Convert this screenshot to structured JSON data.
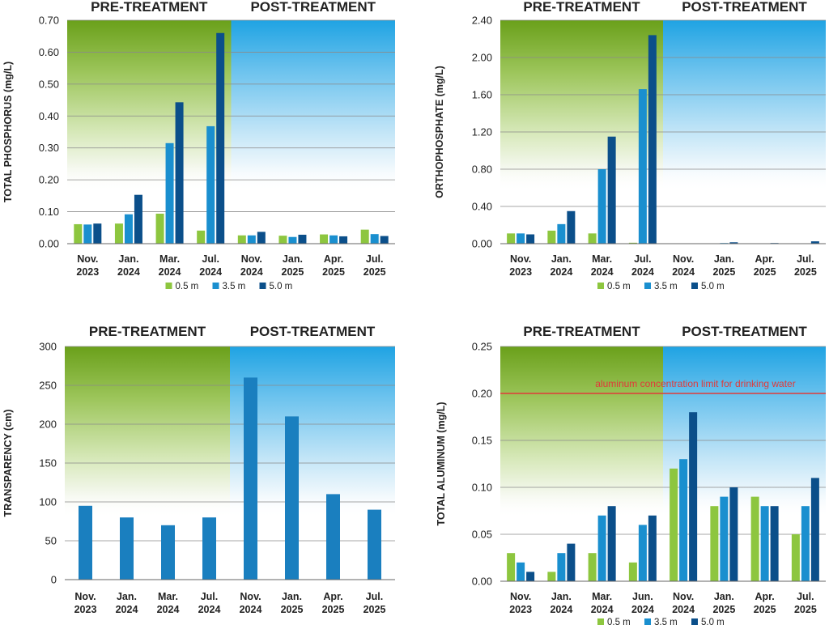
{
  "chart_data": [
    {
      "type": "bar",
      "phase_labels": [
        "PRE-TREATMENT",
        "POST-TREATMENT"
      ],
      "ylabel": "TOTAL PHOSPHORUS  (mg/L)",
      "categories": [
        [
          "Nov.",
          "2023"
        ],
        [
          "Jan.",
          "2024"
        ],
        [
          "Mar.",
          "2024"
        ],
        [
          "Jul.",
          "2024"
        ],
        [
          "Nov.",
          "2024"
        ],
        [
          "Jan.",
          "2025"
        ],
        [
          "Apr.",
          "2025"
        ],
        [
          "Jul.",
          "2025"
        ]
      ],
      "ylim": [
        0,
        0.7
      ],
      "yticks": [
        "0.00",
        "0.10",
        "0.20",
        "0.30",
        "0.40",
        "0.50",
        "0.60",
        "0.70"
      ],
      "pre_count": 4,
      "series": [
        {
          "name": "0.5 m",
          "color": "#8dc63f",
          "values": [
            0.061,
            0.063,
            0.094,
            0.041,
            0.026,
            0.025,
            0.029,
            0.044
          ]
        },
        {
          "name": "3.5 m",
          "color": "#1a8fcf",
          "values": [
            0.06,
            0.092,
            0.315,
            0.368,
            0.026,
            0.021,
            0.026,
            0.03
          ]
        },
        {
          "name": "5.0 m",
          "color": "#0b4f8a",
          "values": [
            0.063,
            0.153,
            0.443,
            0.66,
            0.037,
            0.028,
            0.023,
            0.024
          ]
        }
      ],
      "legend": "bottom",
      "grid": true
    },
    {
      "type": "bar",
      "phase_labels": [
        "PRE-TREATMENT",
        "POST-TREATMENT"
      ],
      "ylabel": "ORTHOPHOSPHATE (mg/L)",
      "categories": [
        [
          "Nov.",
          "2023"
        ],
        [
          "Jan.",
          "2024"
        ],
        [
          "Mar.",
          "2024"
        ],
        [
          "Jul.",
          "2024"
        ],
        [
          "Nov.",
          "2024"
        ],
        [
          "Jan.",
          "2025"
        ],
        [
          "Apr.",
          "2025"
        ],
        [
          "Jul.",
          "2025"
        ]
      ],
      "ylim": [
        0,
        2.4
      ],
      "yticks": [
        "0.00",
        "0.40",
        "0.80",
        "1.20",
        "1.60",
        "2.00",
        "2.40"
      ],
      "pre_count": 4,
      "series": [
        {
          "name": "0.5 m",
          "color": "#8dc63f",
          "values": [
            0.11,
            0.14,
            0.11,
            0.01,
            0.0,
            0.0,
            0.0,
            0.0
          ]
        },
        {
          "name": "3.5 m",
          "color": "#1a8fcf",
          "values": [
            0.11,
            0.21,
            0.8,
            1.66,
            0.0,
            0.005,
            0.0,
            0.0
          ]
        },
        {
          "name": "5.0 m",
          "color": "#0b4f8a",
          "values": [
            0.1,
            0.35,
            1.15,
            2.24,
            0.0,
            0.015,
            0.005,
            0.025
          ]
        }
      ],
      "legend": "bottom",
      "grid": true
    },
    {
      "type": "bar",
      "phase_labels": [
        "PRE-TREATMENT",
        "POST-TREATMENT"
      ],
      "ylabel": "TRANSPARENCY (cm)",
      "categories": [
        [
          "Nov.",
          "2023"
        ],
        [
          "Jan.",
          "2024"
        ],
        [
          "Mar.",
          "2024"
        ],
        [
          "Jul.",
          "2024"
        ],
        [
          "Nov.",
          "2024"
        ],
        [
          "Jan.",
          "2025"
        ],
        [
          "Apr.",
          "2025"
        ],
        [
          "Jul.",
          "2025"
        ]
      ],
      "ylim": [
        0,
        300
      ],
      "yticks": [
        "0",
        "50",
        "100",
        "150",
        "200",
        "250",
        "300"
      ],
      "pre_count": 4,
      "series": [
        {
          "name": "",
          "color": "#1a7fbf",
          "values": [
            95,
            80,
            70,
            80,
            260,
            210,
            110,
            90
          ]
        }
      ],
      "legend": "none",
      "grid": true
    },
    {
      "type": "bar",
      "phase_labels": [
        "PRE-TREATMENT",
        "POST-TREATMENT"
      ],
      "ylabel": "TOTAL ALUMINUM (mg/L)",
      "categories": [
        [
          "Nov.",
          "2023"
        ],
        [
          "Jan.",
          "2024"
        ],
        [
          "Mar.",
          "2024"
        ],
        [
          "Jun.",
          "2024"
        ],
        [
          "Nov.",
          "2024"
        ],
        [
          "Jan.",
          "2025"
        ],
        [
          "Apr.",
          "2025"
        ],
        [
          "Jul.",
          "2025"
        ]
      ],
      "ylim": [
        0,
        0.25
      ],
      "yticks": [
        "0.00",
        "0.05",
        "0.10",
        "0.15",
        "0.20",
        "0.25"
      ],
      "pre_count": 4,
      "series": [
        {
          "name": "0.5 m",
          "color": "#8dc63f",
          "values": [
            0.03,
            0.01,
            0.03,
            0.02,
            0.12,
            0.08,
            0.09,
            0.05
          ]
        },
        {
          "name": "3.5 m",
          "color": "#1a8fcf",
          "values": [
            0.02,
            0.03,
            0.07,
            0.06,
            0.13,
            0.09,
            0.08,
            0.08
          ]
        },
        {
          "name": "5.0 m",
          "color": "#0b4f8a",
          "values": [
            0.01,
            0.04,
            0.08,
            0.07,
            0.18,
            0.1,
            0.08,
            0.11
          ]
        }
      ],
      "reference_line": {
        "value": 0.2,
        "label": "aluminum concentration limit for drinking water",
        "color": "#e03a3a"
      },
      "legend": "bottom",
      "grid": true
    }
  ]
}
